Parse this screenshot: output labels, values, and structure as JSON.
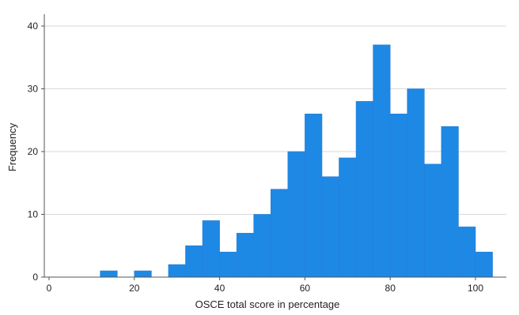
{
  "chart_data": {
    "type": "bar",
    "title": "",
    "xlabel": "OSCE total score in percentage",
    "ylabel": "Frequency",
    "xlim": [
      -5,
      108
    ],
    "ylim": [
      0,
      42
    ],
    "x_ticks": [
      "0",
      "20",
      "40",
      "60",
      "80",
      "100"
    ],
    "y_ticks": [
      "0",
      "10",
      "20",
      "30",
      "40"
    ],
    "grid": true,
    "bar_color": "#1e88e5",
    "bin_width": 4,
    "bins": [
      {
        "x": 14,
        "value": 1
      },
      {
        "x": 22,
        "value": 1
      },
      {
        "x": 30,
        "value": 2
      },
      {
        "x": 34,
        "value": 5
      },
      {
        "x": 38,
        "value": 9
      },
      {
        "x": 42,
        "value": 4
      },
      {
        "x": 46,
        "value": 7
      },
      {
        "x": 50,
        "value": 10
      },
      {
        "x": 54,
        "value": 14
      },
      {
        "x": 58,
        "value": 20
      },
      {
        "x": 62,
        "value": 26
      },
      {
        "x": 66,
        "value": 16
      },
      {
        "x": 70,
        "value": 19
      },
      {
        "x": 74,
        "value": 28
      },
      {
        "x": 78,
        "value": 37
      },
      {
        "x": 82,
        "value": 26
      },
      {
        "x": 86,
        "value": 30
      },
      {
        "x": 90,
        "value": 18
      },
      {
        "x": 94,
        "value": 24
      },
      {
        "x": 98,
        "value": 8
      },
      {
        "x": 102,
        "value": 4
      }
    ]
  }
}
